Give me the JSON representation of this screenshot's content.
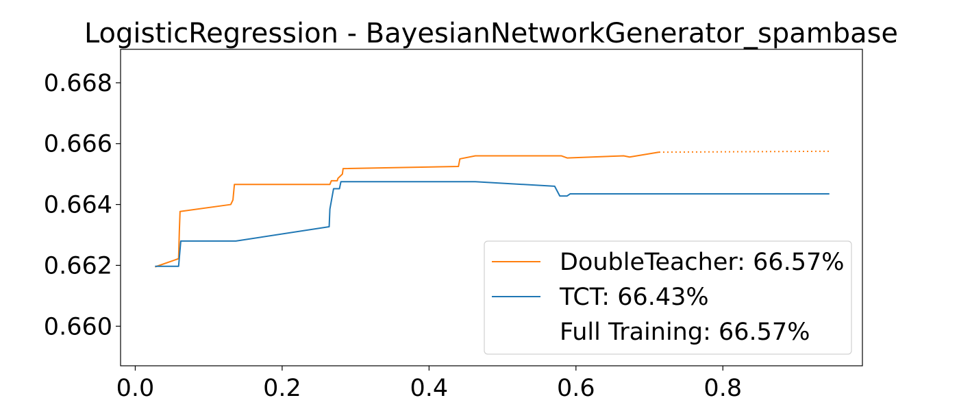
{
  "chart_data": {
    "type": "line",
    "title": "LogisticRegression - BayesianNetworkGenerator_spambase",
    "xlabel": "",
    "ylabel": "",
    "xlim": [
      -0.02,
      0.99
    ],
    "ylim": [
      0.6587,
      0.6691
    ],
    "x_ticks": [
      0.0,
      0.2,
      0.4,
      0.6,
      0.8
    ],
    "x_tick_labels": [
      "0.0",
      "0.2",
      "0.4",
      "0.6",
      "0.8"
    ],
    "y_ticks": [
      0.66,
      0.662,
      0.664,
      0.666,
      0.668
    ],
    "y_tick_labels": [
      "0.660",
      "0.662",
      "0.664",
      "0.666",
      "0.668"
    ],
    "grid": false,
    "legend_position": "lower-right",
    "series": [
      {
        "name": "DoubleTeacher: 66.57%",
        "color": "#ff7f0e",
        "style": "solid",
        "points": [
          [
            0.027,
            0.66195
          ],
          [
            0.059,
            0.66222
          ],
          [
            0.06,
            0.6631
          ],
          [
            0.061,
            0.66377
          ],
          [
            0.13,
            0.664
          ],
          [
            0.133,
            0.66415
          ],
          [
            0.135,
            0.66466
          ],
          [
            0.265,
            0.66466
          ],
          [
            0.267,
            0.66478
          ],
          [
            0.275,
            0.66478
          ],
          [
            0.276,
            0.66486
          ],
          [
            0.282,
            0.665
          ],
          [
            0.283,
            0.66518
          ],
          [
            0.44,
            0.66525
          ],
          [
            0.442,
            0.6655
          ],
          [
            0.463,
            0.6656
          ],
          [
            0.58,
            0.6656
          ],
          [
            0.588,
            0.66553
          ],
          [
            0.665,
            0.6656
          ],
          [
            0.673,
            0.66556
          ],
          [
            0.713,
            0.66572
          ]
        ]
      },
      {
        "name": "TCT: 66.43%",
        "color": "#1f77b4",
        "style": "solid",
        "points": [
          [
            0.027,
            0.66197
          ],
          [
            0.059,
            0.66197
          ],
          [
            0.062,
            0.6628
          ],
          [
            0.137,
            0.6628
          ],
          [
            0.264,
            0.66327
          ],
          [
            0.265,
            0.66385
          ],
          [
            0.27,
            0.66452
          ],
          [
            0.278,
            0.66452
          ],
          [
            0.28,
            0.66475
          ],
          [
            0.463,
            0.66475
          ],
          [
            0.571,
            0.6646
          ],
          [
            0.578,
            0.66428
          ],
          [
            0.588,
            0.66428
          ],
          [
            0.592,
            0.66435
          ],
          [
            0.945,
            0.66435
          ]
        ]
      },
      {
        "name": "Full Training: 66.57%",
        "color": "#ff7f0e",
        "style": "dotted",
        "points": [
          [
            0.713,
            0.66572
          ],
          [
            0.945,
            0.66575
          ]
        ]
      }
    ],
    "legend_entries": [
      {
        "label": "DoubleTeacher: 66.57%",
        "color": "#ff7f0e",
        "swatch": true
      },
      {
        "label": "TCT: 66.43%",
        "color": "#1f77b4",
        "swatch": true
      },
      {
        "label": "Full Training: 66.57%",
        "color": "#ff7f0e",
        "swatch": false
      }
    ]
  }
}
